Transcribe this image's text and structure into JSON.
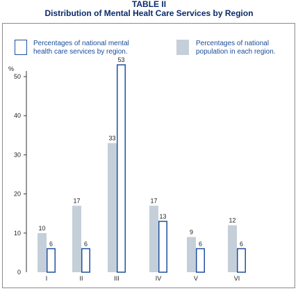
{
  "chart_data": {
    "type": "bar",
    "title": "TABLE II",
    "subtitle": "Distribution of Mental Healt Care Services by Region",
    "ylabel": "%",
    "ylim": [
      0,
      50
    ],
    "yticks": [
      "0",
      "10",
      "20",
      "30",
      "40",
      "50"
    ],
    "categories": [
      "I",
      "II",
      "III",
      "IV",
      "V",
      "VI"
    ],
    "series": [
      {
        "name": "Percentages of national population in each region.",
        "style": "filled",
        "color": "#c4cfd9",
        "values": [
          10,
          17,
          33,
          17,
          9,
          12
        ]
      },
      {
        "name": "Percentages of national mental health care services by region.",
        "style": "outline",
        "color": "#1e4fa0",
        "values": [
          6,
          6,
          53,
          13,
          6,
          6
        ]
      }
    ],
    "legend_lines": {
      "outline": [
        "Percentages of national mental",
        "health care services by region."
      ],
      "filled": [
        "Percentages of national",
        "population in each region."
      ]
    },
    "grid": false,
    "legend_position": "top"
  }
}
